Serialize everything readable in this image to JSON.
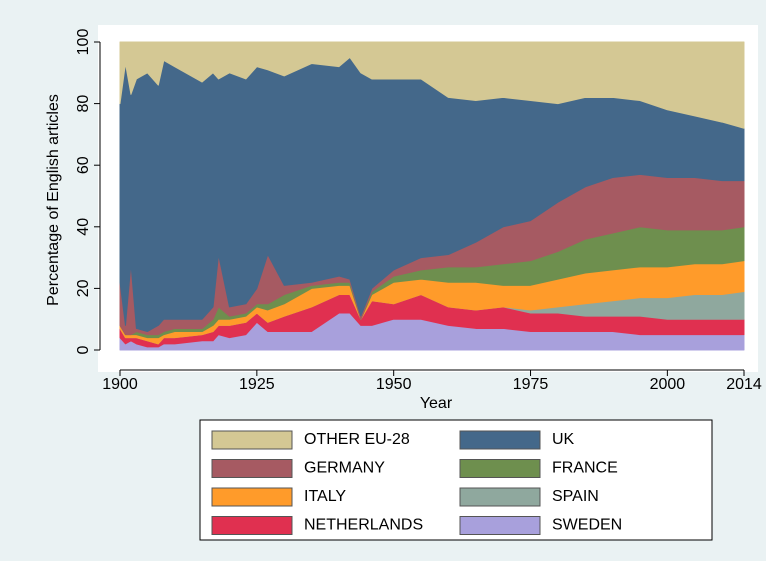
{
  "chart_data": {
    "type": "stacked_area",
    "x_label": "Year",
    "y_label": "Percentage of English articles",
    "x": [
      1900,
      1901,
      1902,
      1903,
      1905,
      1907,
      1908,
      1910,
      1915,
      1917,
      1918,
      1920,
      1923,
      1925,
      1927,
      1930,
      1935,
      1940,
      1942,
      1944,
      1946,
      1950,
      1955,
      1960,
      1965,
      1970,
      1975,
      1980,
      1985,
      1990,
      1995,
      2000,
      2005,
      2010,
      2014
    ],
    "series": [
      {
        "name": "OTHER EU-28",
        "color": "#d4c894",
        "values": [
          20,
          7,
          17,
          12,
          10,
          14,
          6,
          8,
          13,
          10,
          12,
          10,
          12,
          8,
          9,
          11,
          7,
          8,
          5,
          10,
          12,
          12,
          12,
          18,
          19,
          18,
          19,
          20,
          18,
          18,
          19,
          22,
          24,
          26,
          28
        ]
      },
      {
        "name": "UK",
        "color": "#44688a",
        "values": [
          58,
          85,
          55,
          81,
          84,
          78,
          84,
          82,
          77,
          76,
          57,
          76,
          73,
          72,
          60,
          68,
          71,
          68,
          72,
          79,
          68,
          62,
          58,
          51,
          46,
          42,
          39,
          32,
          29,
          26,
          24,
          22,
          20,
          19,
          17
        ]
      },
      {
        "name": "GERMANY",
        "color": "#a65a62",
        "values": [
          14,
          3,
          23,
          1,
          1,
          3,
          4,
          3,
          3,
          4,
          17,
          3,
          3,
          5,
          16,
          3,
          1,
          2,
          1,
          1,
          1,
          2,
          4,
          4,
          8,
          12,
          13,
          16,
          17,
          18,
          17,
          17,
          17,
          16,
          15
        ]
      },
      {
        "name": "FRANCE",
        "color": "#6e8f4e",
        "values": [
          0,
          0,
          0,
          1,
          1,
          1,
          1,
          1,
          1,
          2,
          4,
          1,
          1,
          1,
          2,
          3,
          1,
          1,
          1,
          0,
          1,
          2,
          3,
          5,
          5,
          7,
          8,
          9,
          11,
          12,
          13,
          12,
          11,
          11,
          11
        ]
      },
      {
        "name": "ITALY",
        "color": "#ff9b2a",
        "values": [
          1,
          1,
          1,
          1,
          1,
          2,
          1,
          2,
          1,
          2,
          2,
          2,
          2,
          2,
          4,
          4,
          6,
          3,
          3,
          0,
          2,
          7,
          5,
          8,
          9,
          7,
          8,
          9,
          10,
          10,
          10,
          10,
          10,
          10,
          10
        ]
      },
      {
        "name": "SPAIN",
        "color": "#8fa89e",
        "values": [
          0,
          0,
          0,
          0,
          0,
          0,
          0,
          0,
          0,
          0,
          0,
          0,
          0,
          0,
          0,
          0,
          0,
          0,
          0,
          0,
          0,
          0,
          0,
          0,
          0,
          0,
          1,
          2,
          4,
          5,
          6,
          7,
          8,
          8,
          9
        ]
      },
      {
        "name": "NETHERLANDS",
        "color": "#e03050",
        "values": [
          3,
          2,
          1,
          2,
          2,
          1,
          2,
          2,
          2,
          3,
          3,
          4,
          4,
          3,
          3,
          5,
          8,
          6,
          6,
          2,
          8,
          5,
          8,
          6,
          6,
          7,
          6,
          6,
          5,
          5,
          6,
          5,
          5,
          5,
          5
        ]
      },
      {
        "name": "SWEDEN",
        "color": "#a8a0dc",
        "values": [
          4,
          2,
          3,
          2,
          1,
          1,
          2,
          2,
          3,
          3,
          5,
          4,
          5,
          9,
          6,
          6,
          6,
          12,
          12,
          8,
          8,
          10,
          10,
          8,
          7,
          7,
          6,
          6,
          6,
          6,
          5,
          5,
          5,
          5,
          5
        ]
      }
    ],
    "xlim": [
      1900,
      2014
    ],
    "xticks": [
      1900,
      1925,
      1950,
      1975,
      2000,
      2014
    ],
    "ylim": [
      0,
      100
    ],
    "yticks": [
      0,
      20,
      40,
      60,
      80,
      100
    ],
    "grid": false,
    "legend": "bottom"
  }
}
